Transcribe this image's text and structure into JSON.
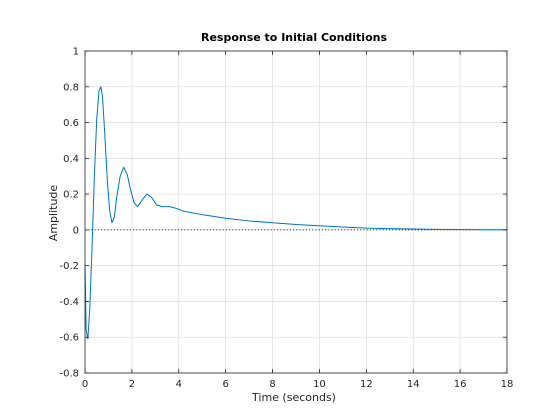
{
  "chart_data": {
    "type": "line",
    "title": "Response to Initial Conditions",
    "xlabel": "Time (seconds)",
    "ylabel": "Amplitude",
    "xlim": [
      0,
      18
    ],
    "ylim": [
      -0.8,
      1
    ],
    "xticks": [
      0,
      2,
      4,
      6,
      8,
      10,
      12,
      14,
      16,
      18
    ],
    "xtick_labels": [
      "0",
      "2",
      "4",
      "6",
      "8",
      "10",
      "12",
      "14",
      "16",
      "18"
    ],
    "yticks": [
      -0.8,
      -0.6,
      -0.4,
      -0.2,
      0,
      0.2,
      0.4,
      0.6,
      0.8,
      1
    ],
    "ytick_labels": [
      "-0.8",
      "-0.6",
      "-0.4",
      "-0.2",
      "0",
      "0.2",
      "0.4",
      "0.6",
      "0.8",
      "1"
    ],
    "grid": true,
    "zero_reference_line": true,
    "series": [
      {
        "color": "#0072bd",
        "points": [
          [
            0,
            -0.2
          ],
          [
            0.05,
            -0.56
          ],
          [
            0.12,
            -0.61
          ],
          [
            0.2,
            -0.45
          ],
          [
            0.3,
            -0.1
          ],
          [
            0.4,
            0.3
          ],
          [
            0.5,
            0.62
          ],
          [
            0.6,
            0.78
          ],
          [
            0.68,
            0.8
          ],
          [
            0.75,
            0.74
          ],
          [
            0.85,
            0.52
          ],
          [
            0.95,
            0.28
          ],
          [
            1.05,
            0.11
          ],
          [
            1.15,
            0.04
          ],
          [
            1.25,
            0.07
          ],
          [
            1.35,
            0.18
          ],
          [
            1.5,
            0.3
          ],
          [
            1.65,
            0.35
          ],
          [
            1.8,
            0.31
          ],
          [
            1.95,
            0.22
          ],
          [
            2.1,
            0.15
          ],
          [
            2.25,
            0.13
          ],
          [
            2.45,
            0.17
          ],
          [
            2.65,
            0.2
          ],
          [
            2.85,
            0.18
          ],
          [
            3.05,
            0.14
          ],
          [
            3.3,
            0.13
          ],
          [
            3.6,
            0.13
          ],
          [
            3.9,
            0.12
          ],
          [
            4.2,
            0.105
          ],
          [
            5,
            0.085
          ],
          [
            6,
            0.065
          ],
          [
            7,
            0.05
          ],
          [
            8,
            0.04
          ],
          [
            9,
            0.03
          ],
          [
            10,
            0.023
          ],
          [
            11,
            0.016
          ],
          [
            12,
            0.01
          ],
          [
            13,
            0.007
          ],
          [
            14,
            0.005
          ],
          [
            15,
            0.003
          ],
          [
            16,
            0.002
          ],
          [
            17,
            0.001
          ],
          [
            18,
            0.0008
          ]
        ]
      }
    ]
  }
}
